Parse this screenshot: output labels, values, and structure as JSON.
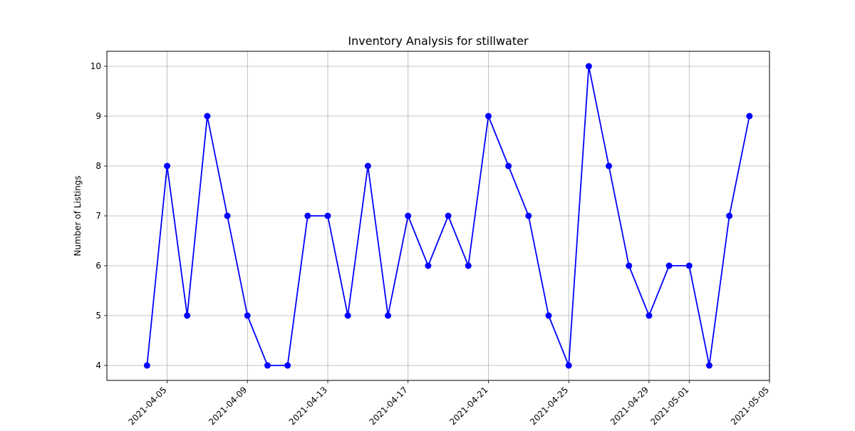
{
  "chart_data": {
    "type": "line",
    "title": "Inventory Analysis for stillwater",
    "xlabel": "",
    "ylabel": "Number of Listings",
    "x": [
      "2021-04-04",
      "2021-04-05",
      "2021-04-06",
      "2021-04-07",
      "2021-04-08",
      "2021-04-09",
      "2021-04-10",
      "2021-04-11",
      "2021-04-12",
      "2021-04-13",
      "2021-04-14",
      "2021-04-15",
      "2021-04-16",
      "2021-04-17",
      "2021-04-18",
      "2021-04-19",
      "2021-04-20",
      "2021-04-21",
      "2021-04-22",
      "2021-04-23",
      "2021-04-24",
      "2021-04-25",
      "2021-04-26",
      "2021-04-27",
      "2021-04-28",
      "2021-04-29",
      "2021-04-30",
      "2021-05-01",
      "2021-05-02",
      "2021-05-03",
      "2021-05-04"
    ],
    "series": [
      {
        "values": [
          4,
          8,
          5,
          9,
          7,
          5,
          4,
          4,
          7,
          7,
          5,
          8,
          5,
          7,
          6,
          7,
          6,
          9,
          8,
          7,
          5,
          4,
          10,
          8,
          6,
          5,
          6,
          6,
          4,
          7,
          9
        ],
        "color": "#0000ff"
      }
    ],
    "x_ticks": [
      "2021-04-05",
      "2021-04-09",
      "2021-04-13",
      "2021-04-17",
      "2021-04-21",
      "2021-04-25",
      "2021-04-29",
      "2021-05-01",
      "2021-05-05"
    ],
    "y_ticks": [
      4,
      5,
      6,
      7,
      8,
      9,
      10
    ],
    "xlim": [
      "2021-04-02",
      "2021-05-05"
    ],
    "ylim": [
      3.7,
      10.3
    ],
    "grid": true,
    "marker": "circle"
  }
}
